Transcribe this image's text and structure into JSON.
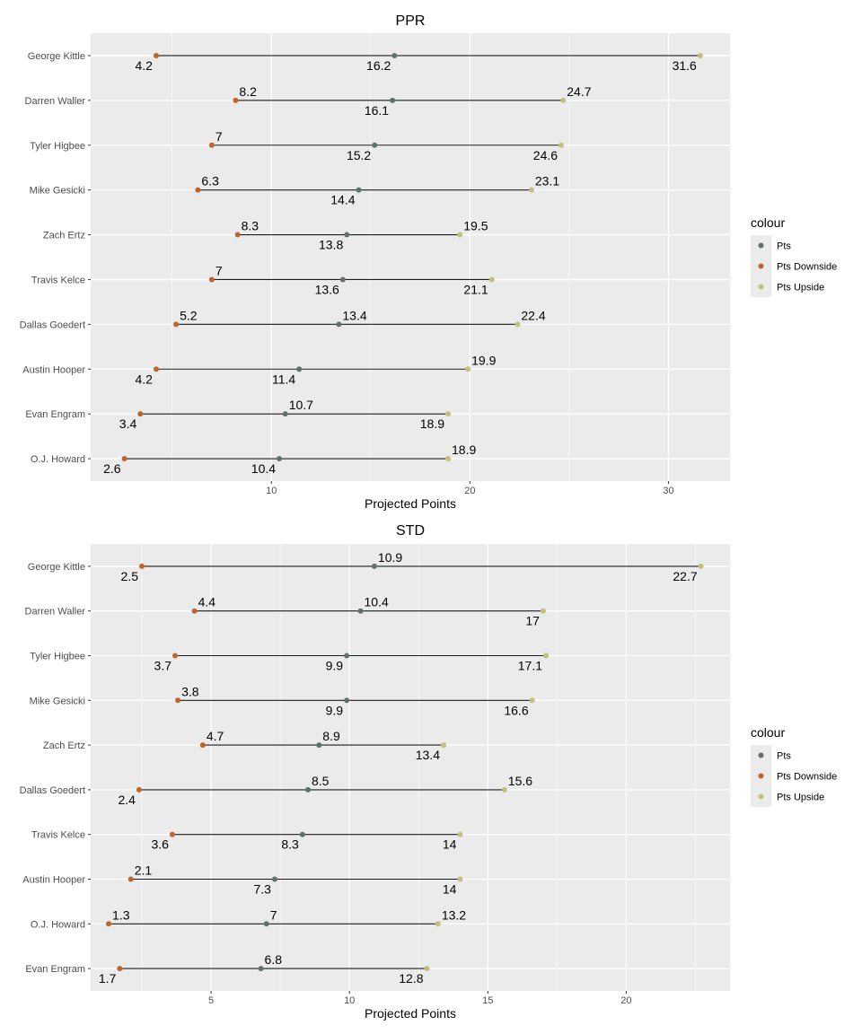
{
  "chart_data": [
    {
      "type": "dumbbell",
      "title": "PPR",
      "xlabel": "Projected Points",
      "ylabel": "",
      "xlim": [
        0.9,
        33.1
      ],
      "xticks": [
        10,
        20,
        30
      ],
      "grid": true,
      "legend": {
        "title": "colour",
        "placement": "right",
        "entries": [
          {
            "label": "Pts",
            "color": "#5f7266"
          },
          {
            "label": "Pts Downside",
            "color": "#c0642c"
          },
          {
            "label": "Pts Upside",
            "color": "#c2c07c"
          }
        ]
      },
      "categories": [
        "George Kittle",
        "Darren Waller",
        "Tyler Higbee",
        "Mike Gesicki",
        "Zach Ertz",
        "Travis Kelce",
        "Dallas Goedert",
        "Austin Hooper",
        "Evan Engram",
        "O.J. Howard"
      ],
      "series": [
        {
          "name": "Pts Downside",
          "values": [
            4.2,
            8.2,
            7,
            6.3,
            8.3,
            7,
            5.2,
            4.2,
            3.4,
            2.6
          ]
        },
        {
          "name": "Pts",
          "values": [
            16.2,
            16.1,
            15.2,
            14.4,
            13.8,
            13.6,
            13.4,
            11.4,
            10.7,
            10.4
          ]
        },
        {
          "name": "Pts Upside",
          "values": [
            31.6,
            24.7,
            24.6,
            23.1,
            19.5,
            21.1,
            22.4,
            19.9,
            18.9,
            18.9
          ]
        }
      ],
      "label_position": {
        "Pts Downside": [
          "below",
          "above",
          "above",
          "above",
          "above",
          "above",
          "above",
          "below",
          "below",
          "below"
        ],
        "Pts": [
          "below",
          "below",
          "below",
          "below",
          "below",
          "below",
          "above",
          "below",
          "above",
          "below"
        ],
        "Pts Upside": [
          "below",
          "above",
          "below",
          "above",
          "above",
          "below",
          "above",
          "above",
          "below",
          "above"
        ]
      }
    },
    {
      "type": "dumbbell",
      "title": "STD",
      "xlabel": "Projected Points",
      "ylabel": "",
      "xlim": [
        0.65,
        23.75
      ],
      "xticks": [
        5,
        10,
        15,
        20
      ],
      "grid": true,
      "legend": {
        "title": "colour",
        "placement": "right",
        "entries": [
          {
            "label": "Pts",
            "color": "#5f7266"
          },
          {
            "label": "Pts Downside",
            "color": "#c0642c"
          },
          {
            "label": "Pts Upside",
            "color": "#c2c07c"
          }
        ]
      },
      "categories": [
        "George Kittle",
        "Darren Waller",
        "Tyler Higbee",
        "Mike Gesicki",
        "Zach Ertz",
        "Dallas Goedert",
        "Travis Kelce",
        "Austin Hooper",
        "O.J. Howard",
        "Evan Engram"
      ],
      "series": [
        {
          "name": "Pts Downside",
          "values": [
            2.5,
            4.4,
            3.7,
            3.8,
            4.7,
            2.4,
            3.6,
            2.1,
            1.3,
            1.7
          ]
        },
        {
          "name": "Pts",
          "values": [
            10.9,
            10.4,
            9.9,
            9.9,
            8.9,
            8.5,
            8.3,
            7.3,
            7,
            6.8
          ]
        },
        {
          "name": "Pts Upside",
          "values": [
            22.7,
            17,
            17.1,
            16.6,
            13.4,
            15.6,
            14,
            14,
            13.2,
            12.8
          ]
        }
      ],
      "label_position": {
        "Pts Downside": [
          "below",
          "above",
          "below",
          "above",
          "above",
          "below",
          "below",
          "above",
          "above",
          "below"
        ],
        "Pts": [
          "above",
          "above",
          "below",
          "below",
          "above",
          "above",
          "below",
          "below",
          "above",
          "above"
        ],
        "Pts Upside": [
          "below",
          "below",
          "below",
          "below",
          "below",
          "above",
          "below",
          "below",
          "above",
          "below"
        ]
      }
    }
  ]
}
